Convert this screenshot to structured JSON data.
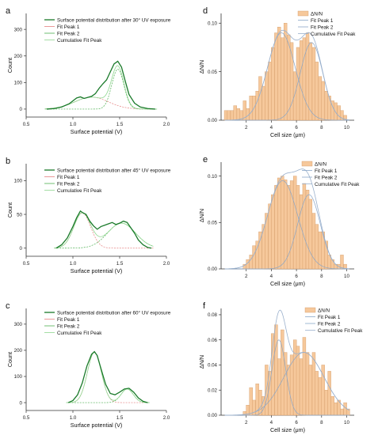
{
  "chart_data": [
    {
      "type": "line",
      "panel": "a",
      "xlabel": "Surface potential (V)",
      "ylabel": "Count",
      "xlim": [
        0.5,
        2.0
      ],
      "ylim": [
        -30,
        360
      ],
      "xticks": [
        0.5,
        1.0,
        1.5,
        2.0
      ],
      "xtick_labels": [
        "0.5",
        "1.0",
        "1.5",
        "2.0"
      ],
      "yticks": [
        0,
        100,
        200,
        300
      ],
      "ytick_labels": [
        "0",
        "100",
        "200",
        "300"
      ],
      "legend": {
        "placement": "top-right",
        "entries": [
          {
            "label": "Surface potential distribution after 30° UV exposure",
            "color": "#1a7a2a"
          },
          {
            "label": "Fit Peak 1",
            "color": "#e58080"
          },
          {
            "label": "Fit Peak 2",
            "color": "#4caf50"
          },
          {
            "label": "Cumulative Fit Peak",
            "color": "#8fd68f"
          }
        ]
      },
      "data_series": {
        "name": "Surface potential distribution after 30° UV exposure",
        "color": "#1a7a2a",
        "x": [
          0.72,
          0.8,
          0.88,
          0.96,
          1.04,
          1.08,
          1.12,
          1.16,
          1.2,
          1.24,
          1.28,
          1.32,
          1.36,
          1.4,
          1.44,
          1.48,
          1.52,
          1.56,
          1.6,
          1.66,
          1.72,
          1.8,
          1.88
        ],
        "y": [
          0,
          2,
          8,
          20,
          42,
          46,
          40,
          44,
          48,
          58,
          78,
          95,
          110,
          140,
          170,
          180,
          158,
          105,
          55,
          22,
          8,
          2,
          0
        ]
      },
      "fit_peaks": [
        {
          "name": "Fit Peak 1",
          "color": "#e58080",
          "amp": 45,
          "center": 1.2,
          "sigma": 0.18
        },
        {
          "name": "Fit Peak 2",
          "color": "#4caf50",
          "amp": 150,
          "center": 1.48,
          "sigma": 0.065
        }
      ],
      "cumulative": {
        "name": "Cumulative Fit Peak",
        "color": "#8fd68f"
      }
    },
    {
      "type": "line",
      "panel": "b",
      "xlabel": "Surface potential (V)",
      "ylabel": "Count",
      "xlim": [
        0.5,
        2.0
      ],
      "ylim": [
        -12,
        125
      ],
      "xticks": [
        0.5,
        1.0,
        1.5,
        2.0
      ],
      "xtick_labels": [
        "0.5",
        "1.0",
        "1.5",
        "2.0"
      ],
      "yticks": [
        0,
        50,
        100
      ],
      "ytick_labels": [
        "0",
        "50",
        "100"
      ],
      "legend": {
        "placement": "top-right",
        "entries": [
          {
            "label": "Surface potential distribution after 45° UV exposure",
            "color": "#1a7a2a"
          },
          {
            "label": "Fit Peak 1",
            "color": "#e58080"
          },
          {
            "label": "Fit Peak 2",
            "color": "#4caf50"
          },
          {
            "label": "Cumulative Fit Peak",
            "color": "#8fd68f"
          }
        ]
      },
      "data_series": {
        "name": "Surface potential distribution after 45° UV exposure",
        "color": "#1a7a2a",
        "x": [
          0.82,
          0.88,
          0.94,
          1.0,
          1.04,
          1.08,
          1.11,
          1.14,
          1.18,
          1.22,
          1.26,
          1.3,
          1.34,
          1.38,
          1.42,
          1.46,
          1.5,
          1.54,
          1.58,
          1.62,
          1.66,
          1.7,
          1.75,
          1.8,
          1.84
        ],
        "y": [
          0,
          5,
          15,
          32,
          45,
          55,
          52,
          50,
          40,
          33,
          28,
          32,
          34,
          36,
          38,
          35,
          37,
          40,
          38,
          30,
          22,
          12,
          5,
          1,
          0
        ]
      },
      "fit_peaks": [
        {
          "name": "Fit Peak 1",
          "color": "#e58080",
          "amp": 52,
          "center": 1.1,
          "sigma": 0.09
        },
        {
          "name": "Fit Peak 2",
          "color": "#4caf50",
          "amp": 37,
          "center": 1.52,
          "sigma": 0.15
        }
      ],
      "cumulative": {
        "name": "Cumulative Fit Peak",
        "color": "#8fd68f"
      }
    },
    {
      "type": "line",
      "panel": "c",
      "xlabel": "Surface potential (V)",
      "ylabel": "Count",
      "xlim": [
        0.5,
        2.0
      ],
      "ylim": [
        -30,
        360
      ],
      "xticks": [
        0.5,
        1.0,
        1.5,
        2.0
      ],
      "xtick_labels": [
        "0.5",
        "1.0",
        "1.5",
        "2.0"
      ],
      "yticks": [
        0,
        100,
        200,
        300
      ],
      "ytick_labels": [
        "0",
        "100",
        "200",
        "300"
      ],
      "legend": {
        "placement": "top-right",
        "entries": [
          {
            "label": "Surface potential distribution after 60° UV exposure",
            "color": "#1a7a2a"
          },
          {
            "label": "Fit Peak 1",
            "color": "#e58080"
          },
          {
            "label": "Fit Peak 2",
            "color": "#4caf50"
          },
          {
            "label": "Cumulative Fit Peak",
            "color": "#8fd68f"
          }
        ]
      },
      "data_series": {
        "name": "Surface potential distribution after 60° UV exposure",
        "color": "#1a7a2a",
        "x": [
          0.95,
          1.0,
          1.05,
          1.1,
          1.15,
          1.2,
          1.23,
          1.26,
          1.3,
          1.35,
          1.4,
          1.45,
          1.5,
          1.55,
          1.6,
          1.65,
          1.7,
          1.75,
          1.8
        ],
        "y": [
          0,
          8,
          30,
          75,
          140,
          185,
          195,
          180,
          130,
          70,
          35,
          30,
          40,
          52,
          55,
          40,
          18,
          5,
          0
        ]
      },
      "fit_peaks": [
        {
          "name": "Fit Peak 1",
          "color": "#e58080",
          "amp": 192,
          "center": 1.23,
          "sigma": 0.075
        },
        {
          "name": "Fit Peak 2",
          "color": "#4caf50",
          "amp": 52,
          "center": 1.58,
          "sigma": 0.065
        }
      ],
      "cumulative": {
        "name": "Cumulative Fit Peak",
        "color": "#8fd68f"
      }
    },
    {
      "type": "bar",
      "panel": "d",
      "xlabel": "Cell size (μm)",
      "ylabel": "ΔN/N",
      "xlim": [
        0,
        10.6
      ],
      "ylim": [
        0,
        0.11
      ],
      "xticks": [
        2,
        4,
        6,
        8,
        10
      ],
      "xtick_labels": [
        "2",
        "4",
        "6",
        "8",
        "10"
      ],
      "yticks": [
        0,
        0.05,
        0.1
      ],
      "ytick_labels": [
        "0.00",
        "0.05",
        "0.10"
      ],
      "bar_width": 0.25,
      "bar_color": "#f6c89b",
      "legend": {
        "placement": "top-right",
        "entries": [
          {
            "label": "ΔN/N",
            "color": "#f6c89b",
            "kind": "bar"
          },
          {
            "label": "Fit Peak 1",
            "color": "#8aa6c8"
          },
          {
            "label": "Fit Peak 2",
            "color": "#8aa6c8"
          },
          {
            "label": "Cumulative Fit Peak",
            "color": "#9ab0cc"
          }
        ]
      },
      "bars": {
        "centers": [
          0.38,
          0.62,
          0.88,
          1.12,
          1.38,
          1.62,
          1.88,
          2.12,
          2.38,
          2.62,
          2.88,
          3.12,
          3.38,
          3.62,
          3.88,
          4.12,
          4.38,
          4.62,
          4.88,
          5.12,
          5.38,
          5.62,
          5.88,
          6.12,
          6.38,
          6.62,
          6.88,
          7.12,
          7.38,
          7.62,
          7.88,
          8.12,
          8.38,
          8.62,
          8.88,
          9.12,
          9.38,
          9.62,
          9.88
        ],
        "values": [
          0.01,
          0.01,
          0.01,
          0.015,
          0.012,
          0.01,
          0.02,
          0.012,
          0.025,
          0.025,
          0.03,
          0.045,
          0.035,
          0.05,
          0.06,
          0.075,
          0.09,
          0.096,
          0.085,
          0.1,
          0.088,
          0.08,
          0.05,
          0.075,
          0.082,
          0.085,
          0.09,
          0.08,
          0.075,
          0.06,
          0.045,
          0.04,
          0.03,
          0.025,
          0.02,
          0.018,
          0.015,
          0.01,
          0.005
        ]
      },
      "fit_peaks": [
        {
          "name": "Fit Peak 1",
          "color": "#8aa6c8",
          "amp": 0.09,
          "center": 4.8,
          "sigma": 1.1
        },
        {
          "name": "Fit Peak 2",
          "color": "#8aa6c8",
          "amp": 0.08,
          "center": 7.2,
          "sigma": 0.9
        }
      ],
      "cumulative": {
        "name": "Cumulative Fit Peak",
        "color": "#9ab0cc"
      }
    },
    {
      "type": "bar",
      "panel": "e",
      "xlabel": "Cell size (μm)",
      "ylabel": "ΔN/N",
      "xlim": [
        0,
        10.6
      ],
      "ylim": [
        0,
        0.115
      ],
      "xticks": [
        2,
        4,
        6,
        8,
        10
      ],
      "xtick_labels": [
        "2",
        "4",
        "6",
        "8",
        "10"
      ],
      "yticks": [
        0,
        0.05,
        0.1
      ],
      "ytick_labels": [
        "0.00",
        "0.05",
        "0.10"
      ],
      "bar_width": 0.25,
      "bar_color": "#f6c89b",
      "legend": {
        "placement": "top-right",
        "entries": [
          {
            "label": "ΔN/N",
            "color": "#f6c89b",
            "kind": "bar"
          },
          {
            "label": "Fit Peak 1",
            "color": "#8aa6c8"
          },
          {
            "label": "Fit Peak 2",
            "color": "#8aa6c8"
          },
          {
            "label": "Cumulative Fit Peak",
            "color": "#9ab0cc"
          }
        ]
      },
      "bars": {
        "centers": [
          1.88,
          2.12,
          2.38,
          2.62,
          2.88,
          3.12,
          3.38,
          3.62,
          3.88,
          4.12,
          4.38,
          4.62,
          4.88,
          5.12,
          5.38,
          5.62,
          5.88,
          6.12,
          6.38,
          6.62,
          6.88,
          7.12,
          7.38,
          7.62,
          7.88,
          8.12,
          8.38,
          8.62,
          8.88,
          9.12,
          9.38,
          9.62,
          9.88
        ],
        "values": [
          0.005,
          0.01,
          0.015,
          0.025,
          0.03,
          0.04,
          0.048,
          0.06,
          0.07,
          0.08,
          0.09,
          0.098,
          0.1,
          0.096,
          0.09,
          0.095,
          0.1,
          0.09,
          0.08,
          0.092,
          0.085,
          0.075,
          0.06,
          0.048,
          0.04,
          0.04,
          0.03,
          0.015,
          0.01,
          0.005,
          0.005,
          0.015,
          0.005
        ]
      },
      "fit_peaks": [
        {
          "name": "Fit Peak 1",
          "color": "#8aa6c8",
          "amp": 0.095,
          "center": 4.9,
          "sigma": 1.2
        },
        {
          "name": "Fit Peak 2",
          "color": "#8aa6c8",
          "amp": 0.08,
          "center": 7.0,
          "sigma": 0.9
        }
      ],
      "cumulative": {
        "name": "Cumulative Fit Peak",
        "color": "#9ab0cc"
      }
    },
    {
      "type": "bar",
      "panel": "f",
      "xlabel": "Cell size (μm)",
      "ylabel": "ΔN/N",
      "xlim": [
        0,
        10.6
      ],
      "ylim": [
        0,
        0.085
      ],
      "xticks": [
        2,
        4,
        6,
        8,
        10
      ],
      "xtick_labels": [
        "2",
        "4",
        "6",
        "8",
        "10"
      ],
      "yticks": [
        0,
        0.02,
        0.04,
        0.06,
        0.08
      ],
      "ytick_labels": [
        "0.00",
        "0.02",
        "0.04",
        "0.06",
        "0.08"
      ],
      "bar_width": 0.25,
      "bar_color": "#f6c89b",
      "legend": {
        "placement": "top-right",
        "entries": [
          {
            "label": "ΔN/N",
            "color": "#f6c89b",
            "kind": "bar"
          },
          {
            "label": "Fit Peak 1",
            "color": "#8aa6c8"
          },
          {
            "label": "Fit Peak 2",
            "color": "#8aa6c8"
          },
          {
            "label": "Cumulative Fit Peak",
            "color": "#9ab0cc"
          }
        ]
      },
      "bars": {
        "centers": [
          1.88,
          2.12,
          2.38,
          2.62,
          2.88,
          3.12,
          3.38,
          3.62,
          3.88,
          4.12,
          4.38,
          4.62,
          4.88,
          5.12,
          5.38,
          5.62,
          5.88,
          6.12,
          6.38,
          6.62,
          6.88,
          7.12,
          7.38,
          7.62,
          7.88,
          8.12,
          8.38,
          8.62,
          8.88,
          9.12,
          9.38,
          9.62,
          9.88,
          10.12
        ],
        "values": [
          0.003,
          0.008,
          0.022,
          0.012,
          0.025,
          0.02,
          0.015,
          0.04,
          0.035,
          0.065,
          0.072,
          0.045,
          0.068,
          0.05,
          0.04,
          0.048,
          0.06,
          0.055,
          0.045,
          0.062,
          0.05,
          0.04,
          0.05,
          0.035,
          0.03,
          0.04,
          0.02,
          0.035,
          0.015,
          0.01,
          0.012,
          0.005,
          0.01,
          0.005
        ]
      },
      "fit_peaks": [
        {
          "name": "Fit Peak 1",
          "color": "#8aa6c8",
          "amp": 0.06,
          "center": 4.6,
          "sigma": 0.55
        },
        {
          "name": "Fit Peak 2",
          "color": "#8aa6c8",
          "amp": 0.05,
          "center": 6.6,
          "sigma": 1.6
        }
      ],
      "cumulative": {
        "name": "Cumulative Fit Peak",
        "color": "#9ab0cc"
      }
    }
  ]
}
